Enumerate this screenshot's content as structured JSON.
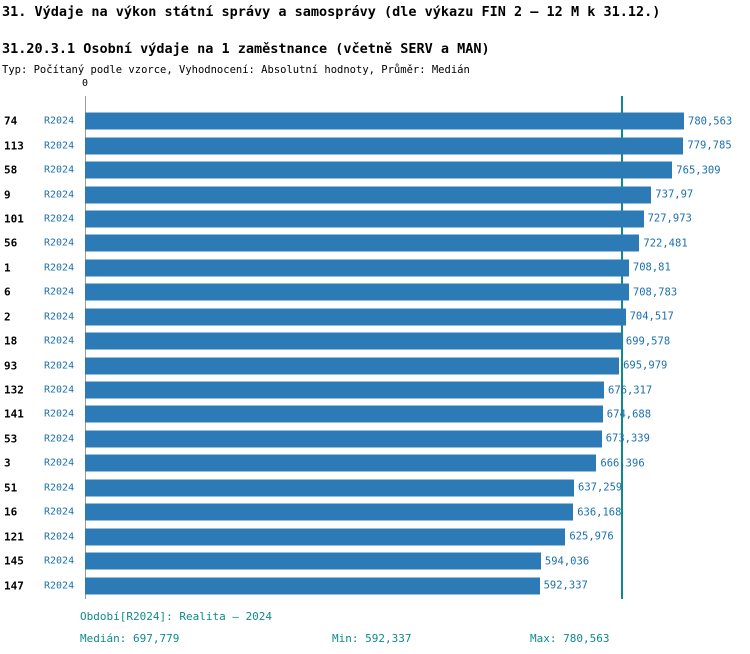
{
  "header": {
    "title": "31. Výdaje na výkon státní správy a samosprávy (dle výkazu FIN 2 – 12 M k 31.12.)",
    "subtitle": "31.20.3.1 Osobní výdaje na 1 zaměstnance (včetně SERV a MAN)",
    "meta": "Typ: Počítaný podle vzorce, Vyhodnocení: Absolutní hodnoty, Průměr: Medián"
  },
  "chart_data": {
    "type": "bar",
    "orientation": "horizontal",
    "title": "31.20.3.1 Osobní výdaje na 1 zaměstnance (včetně SERV a MAN)",
    "axis_origin_label": "0",
    "categories": [
      "74",
      "113",
      "58",
      "9",
      "101",
      "56",
      "1",
      "6",
      "2",
      "18",
      "93",
      "132",
      "141",
      "53",
      "3",
      "51",
      "16",
      "121",
      "145",
      "147"
    ],
    "series": [
      {
        "name": "R2024",
        "values": [
          780.563,
          779.785,
          765.309,
          737.97,
          727.973,
          722.481,
          708.81,
          708.783,
          704.517,
          699.578,
          695.979,
          676.317,
          674.688,
          673.339,
          666.396,
          637.259,
          636.168,
          625.976,
          594.036,
          592.337
        ]
      }
    ],
    "value_labels": [
      "780,563",
      "779,785",
      "765,309",
      "737,97",
      "727,973",
      "722,481",
      "708,81",
      "708,783",
      "704,517",
      "699,578",
      "695,979",
      "676,317",
      "674,688",
      "673,339",
      "666,396",
      "637,259",
      "636,168",
      "625,976",
      "594,036",
      "592,337"
    ],
    "median": 697.779,
    "min": 592.337,
    "max": 780.563,
    "xlim": [
      0,
      780.563
    ],
    "bar_color": "#2d7bb6",
    "median_line_color": "#0d8b8b",
    "label_color": "#1b6fae",
    "legend_position": "none",
    "grid": false
  },
  "footer": {
    "period": "Období[R2024]: Realita – 2024",
    "median": "Medián: 697,779",
    "min": "Min: 592,337",
    "max": "Max: 780,563"
  }
}
